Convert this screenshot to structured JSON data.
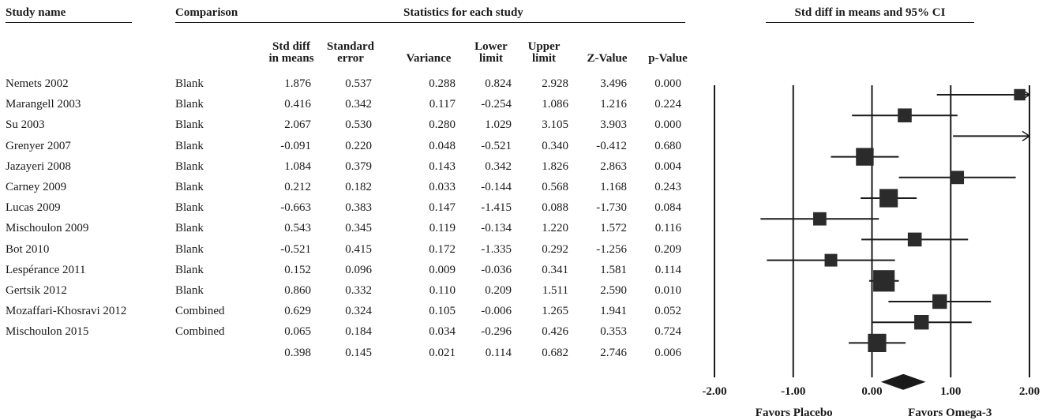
{
  "headers": {
    "study_name": "Study name",
    "comparison": "Comparison",
    "statistics": "Statistics for each study",
    "plot": "Std diff in means and 95% CI"
  },
  "columns": [
    {
      "key": "smd",
      "line1": "Std diff",
      "line2": "in means"
    },
    {
      "key": "se",
      "line1": "Standard",
      "line2": "error"
    },
    {
      "key": "var",
      "line1": "",
      "line2": "Variance"
    },
    {
      "key": "lower",
      "line1": "Lower",
      "line2": "limit"
    },
    {
      "key": "upper",
      "line1": "Upper",
      "line2": "limit"
    },
    {
      "key": "z",
      "line1": "",
      "line2": "Z-Value"
    },
    {
      "key": "p",
      "line1": "",
      "line2": "p-Value"
    }
  ],
  "rows": [
    {
      "study": "Nemets 2002",
      "comparison": "Blank",
      "smd": "1.876",
      "se": "0.537",
      "var": "0.288",
      "lower": "0.824",
      "upper": "2.928",
      "z": "3.496",
      "p": "0.000"
    },
    {
      "study": "Marangell 2003",
      "comparison": "Blank",
      "smd": "0.416",
      "se": "0.342",
      "var": "0.117",
      "lower": "-0.254",
      "upper": "1.086",
      "z": "1.216",
      "p": "0.224"
    },
    {
      "study": "Su 2003",
      "comparison": "Blank",
      "smd": "2.067",
      "se": "0.530",
      "var": "0.280",
      "lower": "1.029",
      "upper": "3.105",
      "z": "3.903",
      "p": "0.000"
    },
    {
      "study": "Grenyer 2007",
      "comparison": "Blank",
      "smd": "-0.091",
      "se": "0.220",
      "var": "0.048",
      "lower": "-0.521",
      "upper": "0.340",
      "z": "-0.412",
      "p": "0.680"
    },
    {
      "study": "Jazayeri 2008",
      "comparison": "Blank",
      "smd": "1.084",
      "se": "0.379",
      "var": "0.143",
      "lower": "0.342",
      "upper": "1.826",
      "z": "2.863",
      "p": "0.004"
    },
    {
      "study": "Carney 2009",
      "comparison": "Blank",
      "smd": "0.212",
      "se": "0.182",
      "var": "0.033",
      "lower": "-0.144",
      "upper": "0.568",
      "z": "1.168",
      "p": "0.243"
    },
    {
      "study": "Lucas 2009",
      "comparison": "Blank",
      "smd": "-0.663",
      "se": "0.383",
      "var": "0.147",
      "lower": "-1.415",
      "upper": "0.088",
      "z": "-1.730",
      "p": "0.084"
    },
    {
      "study": "Mischoulon 2009",
      "comparison": "Blank",
      "smd": "0.543",
      "se": "0.345",
      "var": "0.119",
      "lower": "-0.134",
      "upper": "1.220",
      "z": "1.572",
      "p": "0.116"
    },
    {
      "study": "Bot 2010",
      "comparison": "Blank",
      "smd": "-0.521",
      "se": "0.415",
      "var": "0.172",
      "lower": "-1.335",
      "upper": "0.292",
      "z": "-1.256",
      "p": "0.209"
    },
    {
      "study": "Lespérance 2011",
      "comparison": "Blank",
      "smd": "0.152",
      "se": "0.096",
      "var": "0.009",
      "lower": "-0.036",
      "upper": "0.341",
      "z": "1.581",
      "p": "0.114"
    },
    {
      "study": "Gertsik 2012",
      "comparison": "Blank",
      "smd": "0.860",
      "se": "0.332",
      "var": "0.110",
      "lower": "0.209",
      "upper": "1.511",
      "z": "2.590",
      "p": "0.010"
    },
    {
      "study": "Mozaffari-Khosravi 2012",
      "comparison": "Combined",
      "smd": "0.629",
      "se": "0.324",
      "var": "0.105",
      "lower": "-0.006",
      "upper": "1.265",
      "z": "1.941",
      "p": "0.052"
    },
    {
      "study": "Mischoulon 2015",
      "comparison": "Combined",
      "smd": "0.065",
      "se": "0.184",
      "var": "0.034",
      "lower": "-0.296",
      "upper": "0.426",
      "z": "0.353",
      "p": "0.724"
    }
  ],
  "summary": {
    "smd": "0.398",
    "se": "0.145",
    "var": "0.021",
    "lower": "0.114",
    "upper": "0.682",
    "z": "2.746",
    "p": "0.006"
  },
  "chart_data": {
    "type": "forest",
    "title": "Std diff in means and 95% CI",
    "xlim": [
      -2.0,
      2.0
    ],
    "xticks": [
      "-2.00",
      "-1.00",
      "0.00",
      "1.00",
      "2.00"
    ],
    "xtick_values": [
      -2,
      -1,
      0,
      1,
      2
    ],
    "favors_left": "Favors Placebo",
    "favors_right": "Favors Omega-3",
    "points": [
      {
        "study": "Nemets 2002",
        "estimate": 1.876,
        "lower": 0.824,
        "upper": 2.928,
        "weight": 0.9
      },
      {
        "study": "Marangell 2003",
        "estimate": 0.416,
        "lower": -0.254,
        "upper": 1.086,
        "weight": 1.1
      },
      {
        "study": "Su 2003",
        "estimate": 2.067,
        "lower": 1.029,
        "upper": 3.105,
        "weight": 0.9
      },
      {
        "study": "Grenyer 2007",
        "estimate": -0.091,
        "lower": -0.521,
        "upper": 0.34,
        "weight": 1.4
      },
      {
        "study": "Jazayeri 2008",
        "estimate": 1.084,
        "lower": 0.342,
        "upper": 1.826,
        "weight": 1.05
      },
      {
        "study": "Carney 2009",
        "estimate": 0.212,
        "lower": -0.144,
        "upper": 0.568,
        "weight": 1.45
      },
      {
        "study": "Lucas 2009",
        "estimate": -0.663,
        "lower": -1.415,
        "upper": 0.088,
        "weight": 1.05
      },
      {
        "study": "Mischoulon 2009",
        "estimate": 0.543,
        "lower": -0.134,
        "upper": 1.22,
        "weight": 1.1
      },
      {
        "study": "Bot 2010",
        "estimate": -0.521,
        "lower": -1.335,
        "upper": 0.292,
        "weight": 1.0
      },
      {
        "study": "Lespérance 2011",
        "estimate": 0.152,
        "lower": -0.036,
        "upper": 0.341,
        "weight": 1.7
      },
      {
        "study": "Gertsik 2012",
        "estimate": 0.86,
        "lower": 0.209,
        "upper": 1.511,
        "weight": 1.15
      },
      {
        "study": "Mozaffari-Khosravi 2012",
        "estimate": 0.629,
        "lower": -0.006,
        "upper": 1.265,
        "weight": 1.15
      },
      {
        "study": "Mischoulon 2015",
        "estimate": 0.065,
        "lower": -0.296,
        "upper": 0.426,
        "weight": 1.45
      }
    ],
    "summary": {
      "estimate": 0.398,
      "lower": 0.114,
      "upper": 0.682
    }
  }
}
